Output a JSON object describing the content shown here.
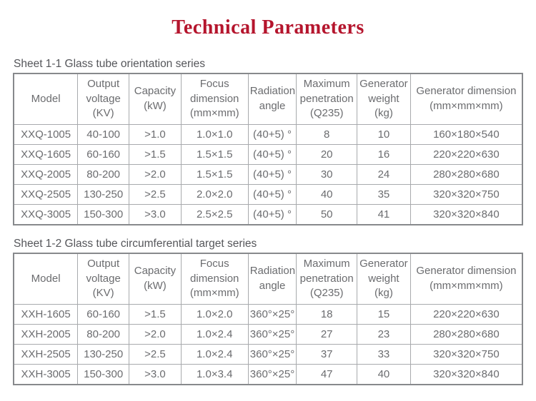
{
  "page": {
    "title": "Technical Parameters"
  },
  "colors": {
    "title_red": "#b5152d",
    "table_text_gray": "#6b6c6f",
    "grid_gray": "#a8aaad",
    "outer_border_gray": "#87898c"
  },
  "tables": [
    {
      "caption": "Sheet 1-1 Glass tube orientation series",
      "headers": [
        "Model",
        "Output\nvoltage\n(KV)",
        "Capacity\n(kW)",
        "Focus\ndimension\n(mm×mm)",
        "Radiation\nangle",
        "Maximum\npenetration\n(Q235)",
        "Generator\nweight\n(kg)",
        "Generator dimension\n(mm×mm×mm)"
      ],
      "rows": [
        [
          "XXQ-1005",
          "40-100",
          ">1.0",
          "1.0×1.0",
          "(40+5) °",
          "8",
          "10",
          "160×180×540"
        ],
        [
          "XXQ-1605",
          "60-160",
          ">1.5",
          "1.5×1.5",
          "(40+5) °",
          "20",
          "16",
          "220×220×630"
        ],
        [
          "XXQ-2005",
          "80-200",
          ">2.0",
          "1.5×1.5",
          "(40+5) °",
          "30",
          "24",
          "280×280×680"
        ],
        [
          "XXQ-2505",
          "130-250",
          ">2.5",
          "2.0×2.0",
          "(40+5) °",
          "40",
          "35",
          "320×320×750"
        ],
        [
          "XXQ-3005",
          "150-300",
          ">3.0",
          "2.5×2.5",
          "(40+5) °",
          "50",
          "41",
          "320×320×840"
        ]
      ]
    },
    {
      "caption": "Sheet 1-2 Glass tube circumferential target series",
      "headers": [
        "Model",
        "Output\nvoltage\n(KV)",
        "Capacity\n(kW)",
        "Focus\ndimension\n(mm×mm)",
        "Radiation\nangle",
        "Maximum\npenetration\n(Q235)",
        "Generator\nweight\n(kg)",
        "Generator dimension\n(mm×mm×mm)"
      ],
      "rows": [
        [
          "XXH-1605",
          "60-160",
          ">1.5",
          "1.0×2.0",
          "360°×25°",
          "18",
          "15",
          "220×220×630"
        ],
        [
          "XXH-2005",
          "80-200",
          ">2.0",
          "1.0×2.4",
          "360°×25°",
          "27",
          "23",
          "280×280×680"
        ],
        [
          "XXH-2505",
          "130-250",
          ">2.5",
          "1.0×2.4",
          "360°×25°",
          "37",
          "33",
          "320×320×750"
        ],
        [
          "XXH-3005",
          "150-300",
          ">3.0",
          "1.0×3.4",
          "360°×25°",
          "47",
          "40",
          "320×320×840"
        ]
      ]
    }
  ]
}
